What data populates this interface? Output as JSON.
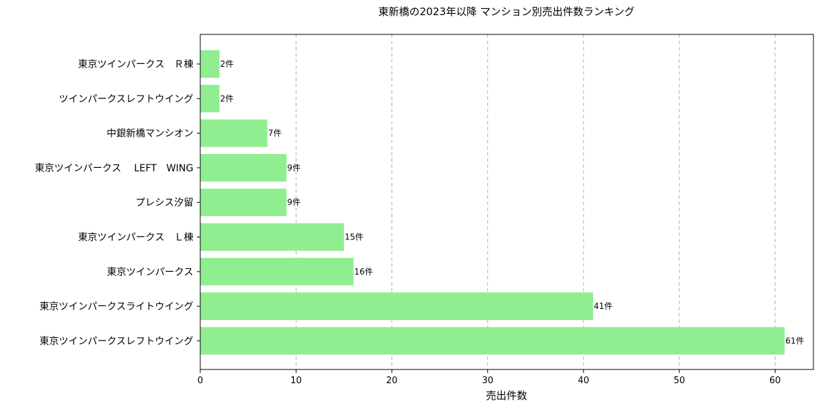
{
  "chart_data": {
    "type": "bar",
    "orientation": "horizontal",
    "title": "東新橋の2023年以降 マンション別売出件数ランキング",
    "xlabel": "売出件数",
    "ylabel": "",
    "xlim": [
      0,
      64
    ],
    "xticks": [
      0,
      10,
      20,
      30,
      40,
      50,
      60
    ],
    "grid": "x-dashed",
    "bar_color": "#90ee90",
    "label_suffix": "件",
    "categories": [
      "東京ツインパークス　Ｒ棟",
      "ツインパークスレフトウイング",
      "中銀新橋マンシオン",
      "東京ツインパークス　 LEFT　WING",
      "プレシス汐留",
      "東京ツインパークス　Ｌ棟",
      "東京ツインパークス",
      "東京ツインパークスライトウイング",
      "東京ツインパークスレフトウイング"
    ],
    "values": [
      2,
      2,
      7,
      9,
      9,
      15,
      16,
      41,
      61
    ],
    "data_labels": [
      "2件",
      "2件",
      "7件",
      "9件",
      "9件",
      "15件",
      "16件",
      "41件",
      "61件"
    ]
  }
}
